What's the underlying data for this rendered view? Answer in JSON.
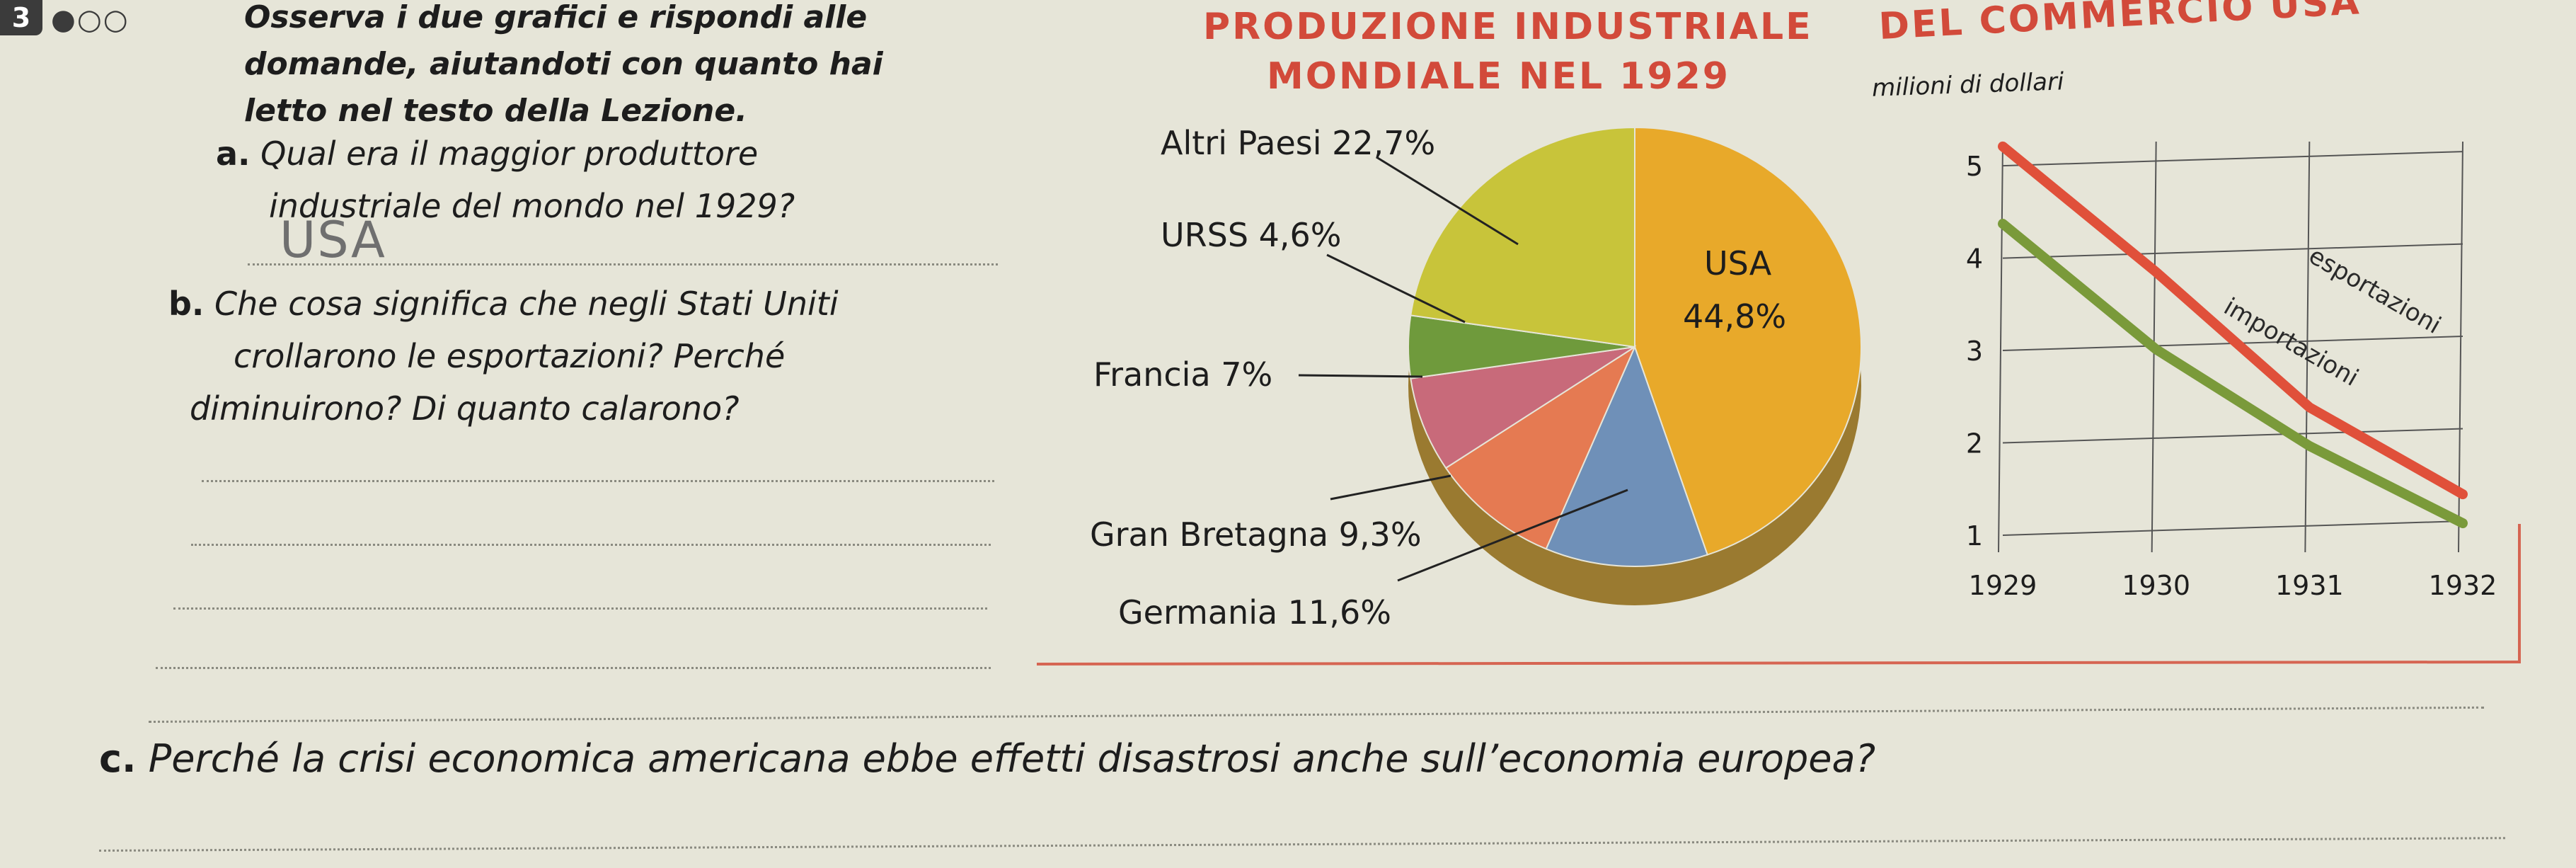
{
  "exercise": {
    "number": "3",
    "difficulty_dots": "●○○",
    "intro": "Osserva i due grafici e rispondi alle domande, aiutandoti con quanto hai letto nel testo della Lezione.",
    "intro_lines": [
      "Osserva i due grafici e rispondi alle",
      "domande, aiutandoti con quanto hai",
      "letto nel testo della Lezione."
    ]
  },
  "questions": {
    "a_letter": "a.",
    "a_lines": [
      "Qual era il maggior produttore",
      "industriale del mondo nel 1929?"
    ],
    "a_answer": "USA",
    "b_letter": "b.",
    "b_lines": [
      "Che cosa significa che negli Stati Uniti",
      "crollarono le esportazioni? Perché",
      "diminuirono? Di quanto calarono?"
    ],
    "c_letter": "c.",
    "c_text": "Perché la crisi economica americana ebbe effetti disastrosi anche sull’economia europea?"
  },
  "pie_chart": {
    "title_lines": [
      "PRODUZIONE INDUSTRIALE",
      "MONDIALE NEL 1929"
    ],
    "labels": {
      "altri": "Altri Paesi 22,7%",
      "urss": "URSS 4,6%",
      "francia": "Francia 7%",
      "gb": "Gran Bretagna 9,3%",
      "germania": "Germania 11,6%",
      "usa_name": "USA",
      "usa_value": "44,8%"
    }
  },
  "line_chart": {
    "title": "DEL COMMERCIO USA",
    "unit": "milioni di dollari",
    "y_ticks": [
      "5",
      "4",
      "3",
      "2",
      "1"
    ],
    "x_ticks": [
      "1929",
      "1930",
      "1931",
      "1932"
    ],
    "series_labels": {
      "export": "esportazioni",
      "import": "importazioni"
    }
  },
  "colors": {
    "usa": "#e8a92a",
    "altri": "#c8c43a",
    "urss": "#6f9a3c",
    "francia": "#c86a7a",
    "gran_bretagna": "#e57a52",
    "germania": "#6f90b8",
    "export_line": "#e0503a",
    "import_line": "#7a9a3a",
    "title_red": "#d24a3a"
  },
  "chart_data": [
    {
      "type": "pie",
      "title": "PRODUZIONE INDUSTRIALE MONDIALE NEL 1929",
      "slices": [
        {
          "name": "USA",
          "value": 44.8
        },
        {
          "name": "Germania",
          "value": 11.6
        },
        {
          "name": "Gran Bretagna",
          "value": 9.3
        },
        {
          "name": "Francia",
          "value": 7
        },
        {
          "name": "URSS",
          "value": 4.6
        },
        {
          "name": "Altri Paesi",
          "value": 22.7
        }
      ]
    },
    {
      "type": "line",
      "title": "DEL COMMERCIO USA",
      "ylabel": "milioni di dollari",
      "x": [
        1929,
        1930,
        1931,
        1932
      ],
      "ylim": [
        1,
        5
      ],
      "series": [
        {
          "name": "esportazioni",
          "values": [
            5.2,
            3.9,
            2.5,
            1.6
          ]
        },
        {
          "name": "importazioni",
          "values": [
            4.4,
            3.1,
            2.1,
            1.3
          ]
        }
      ],
      "grid": true
    }
  ]
}
